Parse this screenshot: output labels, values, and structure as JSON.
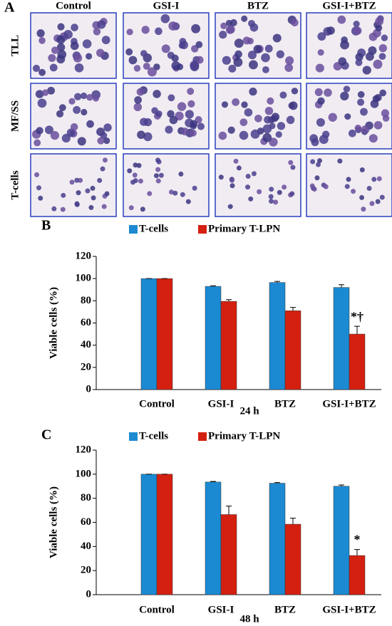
{
  "panel_a": {
    "label": "A",
    "columns": [
      "Control",
      "GSI-I",
      "BTZ",
      "GSI-I+BTZ"
    ],
    "rows": [
      "TLL",
      "MF/SS",
      "T-cells"
    ]
  },
  "chart_data": [
    {
      "type": "bar",
      "panel_label": "B",
      "x_label": "24 h",
      "y_label": "Viable cells (%)",
      "categories": [
        "Control",
        "GSI-I",
        "BTZ",
        "GSI-I+BTZ"
      ],
      "series": [
        {
          "name": "T-cells",
          "color": "#1b8ad2",
          "values": [
            100,
            93,
            96.5,
            92
          ],
          "errors": [
            0,
            0.5,
            1,
            2.5
          ]
        },
        {
          "name": "Primary T-LPN",
          "color": "#d42010",
          "values": [
            100,
            79.5,
            71,
            50
          ],
          "errors": [
            0,
            1.5,
            3,
            7
          ]
        }
      ],
      "annotations": [
        {
          "text": "*†",
          "series": 1,
          "index": 3
        }
      ],
      "ylim": [
        0,
        120
      ],
      "yticks": [
        0,
        20,
        40,
        60,
        80,
        100,
        120
      ],
      "legend": "top"
    },
    {
      "type": "bar",
      "panel_label": "C",
      "x_label": "48 h",
      "y_label": "Viable cells (%)",
      "categories": [
        "Control",
        "GSI-I",
        "BTZ",
        "GSI-I+BTZ"
      ],
      "series": [
        {
          "name": "T-cells",
          "color": "#1b8ad2",
          "values": [
            100,
            93.5,
            92.5,
            90
          ],
          "errors": [
            0,
            0.5,
            0.5,
            1
          ]
        },
        {
          "name": "Primary T-LPN",
          "color": "#d42010",
          "values": [
            100,
            66.5,
            58.5,
            32.5
          ],
          "errors": [
            0,
            7,
            5,
            5
          ]
        }
      ],
      "annotations": [
        {
          "text": "*",
          "series": 1,
          "index": 3
        }
      ],
      "ylim": [
        0,
        120
      ],
      "yticks": [
        0,
        20,
        40,
        60,
        80,
        100,
        120
      ],
      "legend": "top"
    }
  ]
}
